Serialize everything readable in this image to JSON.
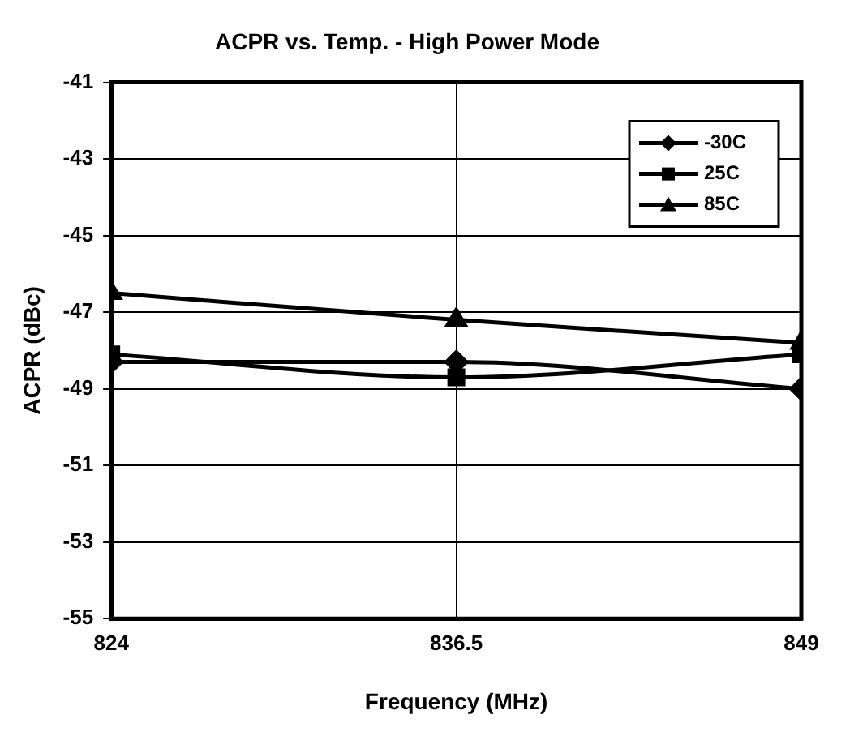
{
  "chart_data": {
    "type": "line",
    "title": "ACPR vs. Temp. - High Power Mode",
    "xlabel": "Frequency (MHz)",
    "ylabel": "ACPR (dBc)",
    "x": [
      824,
      836.5,
      849
    ],
    "xlim": [
      824,
      849
    ],
    "xticks": [
      824,
      836.5,
      849
    ],
    "ylim": [
      -55,
      -41
    ],
    "yticks": [
      -55,
      -53,
      -51,
      -49,
      -47,
      -45,
      -43,
      -41
    ],
    "grid": true,
    "legend": "top right",
    "series": [
      {
        "name": "-30C",
        "color": "#000000",
        "marker": "diamond",
        "values": [
          -48.3,
          -48.3,
          -49.0
        ]
      },
      {
        "name": "25C",
        "color": "#000000",
        "marker": "square",
        "values": [
          -48.1,
          -48.7,
          -48.1
        ]
      },
      {
        "name": "85C",
        "color": "#000000",
        "marker": "triangle",
        "values": [
          -46.5,
          -47.2,
          -47.8
        ]
      }
    ]
  }
}
